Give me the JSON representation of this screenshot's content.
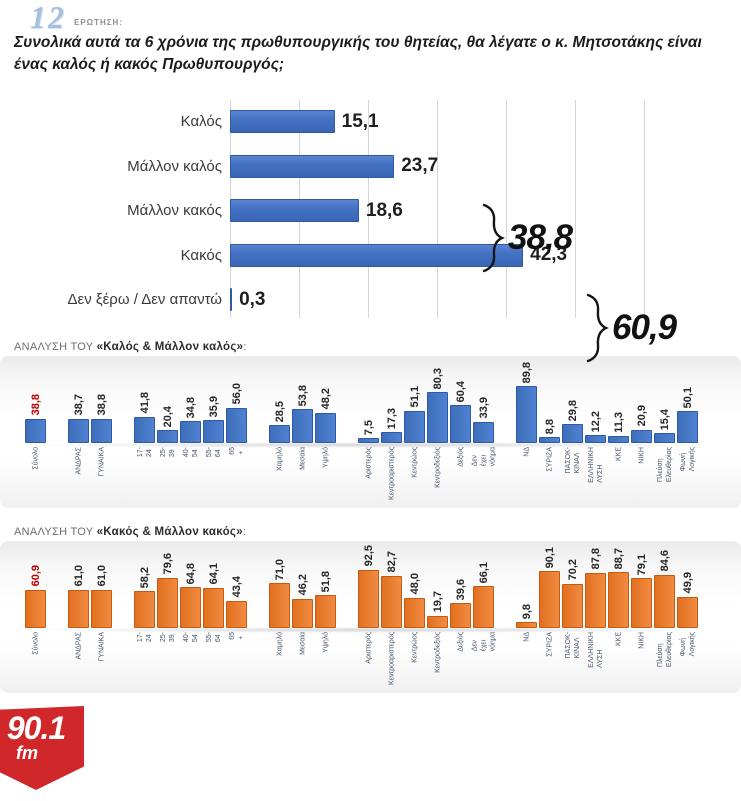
{
  "header": {
    "question_number": "12",
    "question_label": "ΕΡΩΤΗΣΗ:",
    "question_text": "Συνολικά αυτά τα 6 χρόνια της πρωθυπουργικής του θητείας, θα λέγατε ο κ. Μητσοτάκης είναι ένας καλός ή κακός Πρωθυπουργός;"
  },
  "colors": {
    "blue": "#4472C4",
    "orange": "#ED7D31",
    "highlight_red": "#C00000",
    "grid": "#D6D6D6",
    "logo_red": "#D0282A"
  },
  "logo": {
    "frequency": "90.1",
    "band": "fm"
  },
  "chart_data": [
    {
      "type": "bar",
      "orientation": "horizontal",
      "categories": [
        "Καλός",
        "Μάλλον καλός",
        "Μάλλον κακός",
        "Κακός",
        "Δεν ξέρω / Δεν απαντώ"
      ],
      "values": [
        15.1,
        23.7,
        18.6,
        42.3,
        0.3
      ],
      "value_labels": [
        "15,1",
        "23,7",
        "18,6",
        "42,3",
        "0,3"
      ],
      "xlim": [
        0,
        70
      ],
      "grid": true,
      "brace_annotations": [
        {
          "text": "38,8",
          "covers": [
            "Καλός",
            "Μάλλον καλός"
          ]
        },
        {
          "text": "60,9",
          "covers": [
            "Μάλλον κακός",
            "Κακός"
          ]
        }
      ]
    },
    {
      "type": "bar",
      "title_prefix": "ΑΝΑΛΥΣΗ ΤΟΥ ",
      "title_bold": "«Καλός & Μάλλον καλός»",
      "title_suffix": ":",
      "series_color_key": "blue",
      "ylim": [
        0,
        100
      ],
      "groups": [
        {
          "name": "total",
          "bars": [
            {
              "label": "Σύνολο",
              "value": 38.8,
              "display": "38,8",
              "highlight": true
            }
          ]
        },
        {
          "name": "gender",
          "bars": [
            {
              "label": "ΑΝΔΡΑΣ",
              "value": 38.7,
              "display": "38,7"
            },
            {
              "label": "ΓΥΝΑΙΚΑ",
              "value": 38.8,
              "display": "38,8"
            }
          ]
        },
        {
          "name": "age",
          "bars": [
            {
              "label": "17-24",
              "value": 41.8,
              "display": "41,8"
            },
            {
              "label": "25-39",
              "value": 20.4,
              "display": "20,4"
            },
            {
              "label": "40-54",
              "value": 34.8,
              "display": "34,8"
            },
            {
              "label": "55-64",
              "value": 35.9,
              "display": "35,9"
            },
            {
              "label": "65 +",
              "value": 56.0,
              "display": "56,0"
            }
          ]
        },
        {
          "name": "education",
          "bars": [
            {
              "label": "Χαμηλό",
              "value": 28.5,
              "display": "28,5"
            },
            {
              "label": "Μεσαία",
              "value": 53.8,
              "display": "53,8"
            },
            {
              "label": "Υψηλό",
              "value": 48.2,
              "display": "48,2"
            }
          ]
        },
        {
          "name": "ideology",
          "bars": [
            {
              "label": "Αριστερός",
              "value": 7.5,
              "display": "7,5"
            },
            {
              "label": "Κεντροαριστερός",
              "value": 17.3,
              "display": "17,3"
            },
            {
              "label": "Κεντρώος",
              "value": 51.1,
              "display": "51,1"
            },
            {
              "label": "Κεντροδεξιός",
              "value": 80.3,
              "display": "80,3"
            },
            {
              "label": "Δεξιός",
              "value": 60.4,
              "display": "60,4"
            },
            {
              "label": "Δεν έχει νόημα",
              "value": 33.9,
              "display": "33,9"
            }
          ]
        },
        {
          "name": "party",
          "bars": [
            {
              "label": "ΝΔ",
              "value": 89.8,
              "display": "89,8"
            },
            {
              "label": "ΣΥΡΙΖΑ",
              "value": 8.8,
              "display": "8,8"
            },
            {
              "label": "ΠΑΣΟΚ-ΚΙΝΑΛ",
              "value": 29.8,
              "display": "29,8"
            },
            {
              "label": "ΕΛΛΗΝΙΚΗ ΛΥΣΗ",
              "value": 12.2,
              "display": "12,2"
            },
            {
              "label": "ΚΚΕ",
              "value": 11.3,
              "display": "11,3"
            },
            {
              "label": "ΝΙΚΗ",
              "value": 20.9,
              "display": "20,9"
            },
            {
              "label": "Πλεύση Ελευθερίας",
              "value": 15.4,
              "display": "15,4"
            },
            {
              "label": "Φωνή Λογικής",
              "value": 50.1,
              "display": "50,1"
            }
          ]
        }
      ]
    },
    {
      "type": "bar",
      "title_prefix": "ΑΝΑΛΥΣΗ ΤΟΥ ",
      "title_bold": "«Κακός & Μάλλον κακός»",
      "title_suffix": ":",
      "series_color_key": "orange",
      "ylim": [
        0,
        100
      ],
      "groups": [
        {
          "name": "total",
          "bars": [
            {
              "label": "Σύνολο",
              "value": 60.9,
              "display": "60,9",
              "highlight": true
            }
          ]
        },
        {
          "name": "gender",
          "bars": [
            {
              "label": "ΑΝΔΡΑΣ",
              "value": 61.0,
              "display": "61,0"
            },
            {
              "label": "ΓΥΝΑΙΚΑ",
              "value": 61.0,
              "display": "61,0"
            }
          ]
        },
        {
          "name": "age",
          "bars": [
            {
              "label": "17-24",
              "value": 58.2,
              "display": "58,2"
            },
            {
              "label": "25-39",
              "value": 79.6,
              "display": "79,6"
            },
            {
              "label": "40-54",
              "value": 64.8,
              "display": "64,8"
            },
            {
              "label": "55-64",
              "value": 64.1,
              "display": "64,1"
            },
            {
              "label": "65 +",
              "value": 43.4,
              "display": "43,4"
            }
          ]
        },
        {
          "name": "education",
          "bars": [
            {
              "label": "Χαμηλό",
              "value": 71.0,
              "display": "71,0"
            },
            {
              "label": "Μεσαία",
              "value": 46.2,
              "display": "46,2"
            },
            {
              "label": "Υψηλό",
              "value": 51.8,
              "display": "51,8"
            }
          ]
        },
        {
          "name": "ideology",
          "bars": [
            {
              "label": "Αριστερός",
              "value": 92.5,
              "display": "92,5"
            },
            {
              "label": "Κεντροαριστερός",
              "value": 82.7,
              "display": "82,7"
            },
            {
              "label": "Κεντρώος",
              "value": 48.0,
              "display": "48,0"
            },
            {
              "label": "Κεντροδεξιός",
              "value": 19.7,
              "display": "19,7"
            },
            {
              "label": "Δεξιός",
              "value": 39.6,
              "display": "39,6"
            },
            {
              "label": "Δεν έχει νόημα",
              "value": 66.1,
              "display": "66,1"
            }
          ]
        },
        {
          "name": "party",
          "bars": [
            {
              "label": "ΝΔ",
              "value": 9.8,
              "display": "9,8"
            },
            {
              "label": "ΣΥΡΙΖΑ",
              "value": 90.1,
              "display": "90,1"
            },
            {
              "label": "ΠΑΣΟΚ-ΚΙΝΑΛ",
              "value": 70.2,
              "display": "70,2"
            },
            {
              "label": "ΕΛΛΗΝΙΚΗ ΛΥΣΗ",
              "value": 87.8,
              "display": "87,8"
            },
            {
              "label": "ΚΚΕ",
              "value": 88.7,
              "display": "88,7"
            },
            {
              "label": "ΝΙΚΗ",
              "value": 79.1,
              "display": "79,1"
            },
            {
              "label": "Πλεύση Ελευθερίας",
              "value": 84.6,
              "display": "84,6"
            },
            {
              "label": "Φωνή Λογικής",
              "value": 49.9,
              "display": "49,9"
            }
          ]
        }
      ]
    }
  ]
}
